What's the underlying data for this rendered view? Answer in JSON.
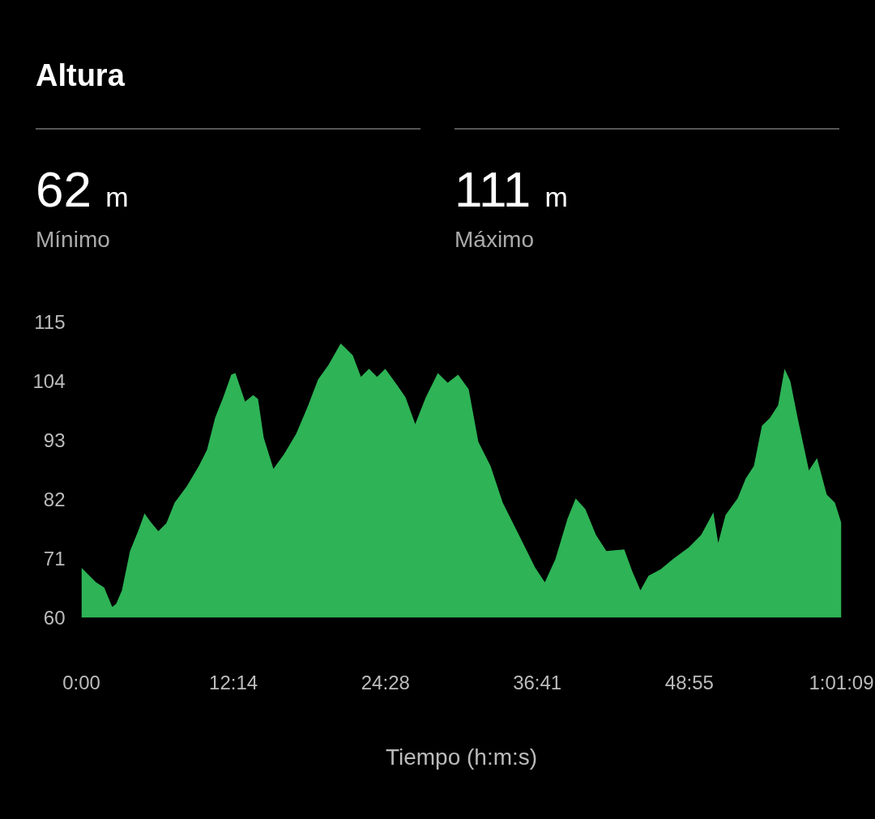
{
  "chart_data": {
    "type": "area",
    "title": "Altura",
    "xlabel": "Tiempo (h:m:s)",
    "annotations": [
      "62 m",
      "Mínimo",
      "111 m",
      "Máximo"
    ],
    "x": [
      0,
      0.52,
      1.17,
      1.83,
      2.48,
      2.8,
      3.26,
      3.91,
      4.56,
      5.08,
      5.54,
      6.19,
      6.84,
      7.5,
      8.47,
      9.45,
      10.1,
      10.76,
      11.41,
      12.06,
      12.39,
      13.17,
      13.82,
      14.21,
      14.67,
      15.45,
      16.3,
      17.28,
      18.25,
      19.04,
      19.88,
      20.86,
      21.19,
      21.84,
      22.49,
      23.14,
      23.79,
      24.45,
      25.42,
      26.08,
      26.86,
      27.71,
      28.68,
      29.47,
      30.31,
      31.16,
      31.94,
      32.92,
      33.9,
      35.2,
      36.51,
      37.29,
      38.14,
      39.11,
      39.77,
      40.55,
      41.4,
      42.24,
      43.68,
      44.33,
      44.98,
      45.63,
      46.61,
      47.59,
      48.89,
      49.87,
      50.85,
      51.24,
      51.83,
      52.8,
      53.46,
      54.11,
      54.76,
      55.41,
      56.06,
      56.58,
      57.04,
      57.69,
      58.54,
      59.19,
      59.97,
      60.63,
      61.15
    ],
    "series": [
      {
        "color": "#2eb356",
        "values": [
          69.3,
          68.1,
          66.6,
          65.6,
          62,
          62.6,
          65.1,
          72.4,
          76.1,
          79.4,
          77.9,
          76.1,
          77.6,
          81.4,
          84.4,
          88.2,
          91.2,
          97.2,
          101,
          105.2,
          105.5,
          100.2,
          101.4,
          100.7,
          93.5,
          87.7,
          90.4,
          94.2,
          99.5,
          104.3,
          107,
          111,
          110.3,
          108.8,
          104.8,
          106.3,
          104.8,
          106.3,
          103.2,
          101,
          96,
          101,
          105.5,
          103.7,
          105.2,
          102.5,
          92.7,
          88.2,
          81.4,
          75.4,
          69.3,
          66.6,
          70.9,
          78.4,
          82.2,
          80.2,
          75.4,
          72.4,
          72.7,
          68.6,
          65.1,
          67.8,
          69,
          70.9,
          73.1,
          75.4,
          79.6,
          73.9,
          79.1,
          82.2,
          85.9,
          88.2,
          95.7,
          97.2,
          99.5,
          106.3,
          104,
          96.5,
          87.4,
          89.7,
          82.9,
          81.4,
          77.6
        ]
      }
    ],
    "xlim": [
      0,
      61.15
    ],
    "xticks": [
      {
        "value": 0,
        "label": "0:00"
      },
      {
        "value": 12.233,
        "label": "12:14"
      },
      {
        "value": 24.467,
        "label": "24:28"
      },
      {
        "value": 36.683,
        "label": "36:41"
      },
      {
        "value": 48.917,
        "label": "48:55"
      },
      {
        "value": 61.15,
        "label": "1:01:09"
      }
    ],
    "ylim": [
      60,
      115
    ],
    "yticks": [
      60,
      71,
      82,
      93,
      104,
      115
    ],
    "grid": false
  }
}
